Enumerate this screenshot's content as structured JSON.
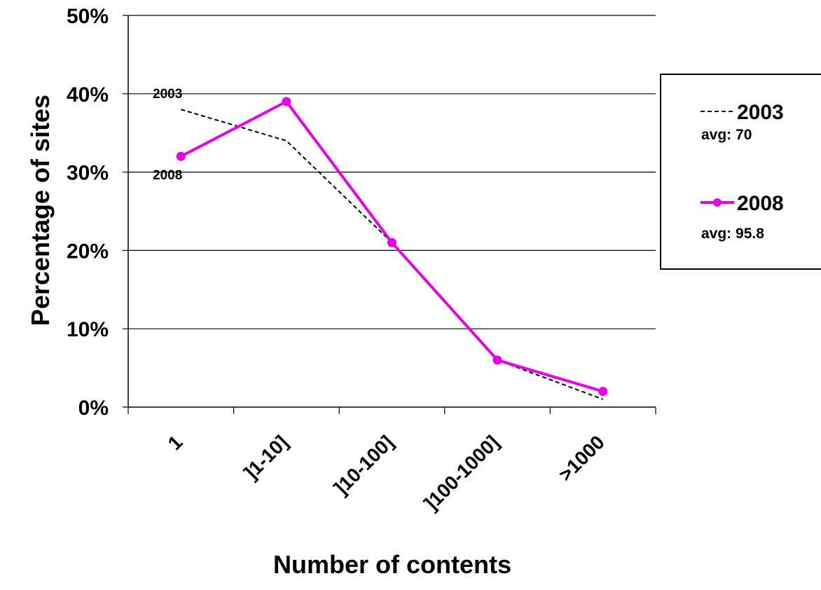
{
  "chart_data": {
    "type": "line",
    "xlabel": "Number of contents",
    "ylabel": "Percentage of sites",
    "categories": [
      "1",
      "]1-10]",
      "]10-100]",
      "]100-1000]",
      ">1000"
    ],
    "ylim": [
      0,
      50
    ],
    "yticks": [
      "0%",
      "10%",
      "20%",
      "30%",
      "40%",
      "50%"
    ],
    "ytick_values": [
      0,
      10,
      20,
      30,
      40,
      50
    ],
    "grid": true,
    "legend_position": "right",
    "series": [
      {
        "name": "2003",
        "avg_label": "avg: 70",
        "values": [
          38,
          34,
          21,
          6,
          1
        ],
        "color": "#000000",
        "style": "dashed",
        "marker": "none"
      },
      {
        "name": "2008",
        "avg_label": "avg: 95.8",
        "values": [
          32,
          39,
          21,
          6,
          2
        ],
        "color": "#e600e6",
        "style": "solid",
        "marker": "circle"
      }
    ],
    "annotations": [
      {
        "text": "2003",
        "series": "2003"
      },
      {
        "text": "2008",
        "series": "2008"
      }
    ]
  }
}
